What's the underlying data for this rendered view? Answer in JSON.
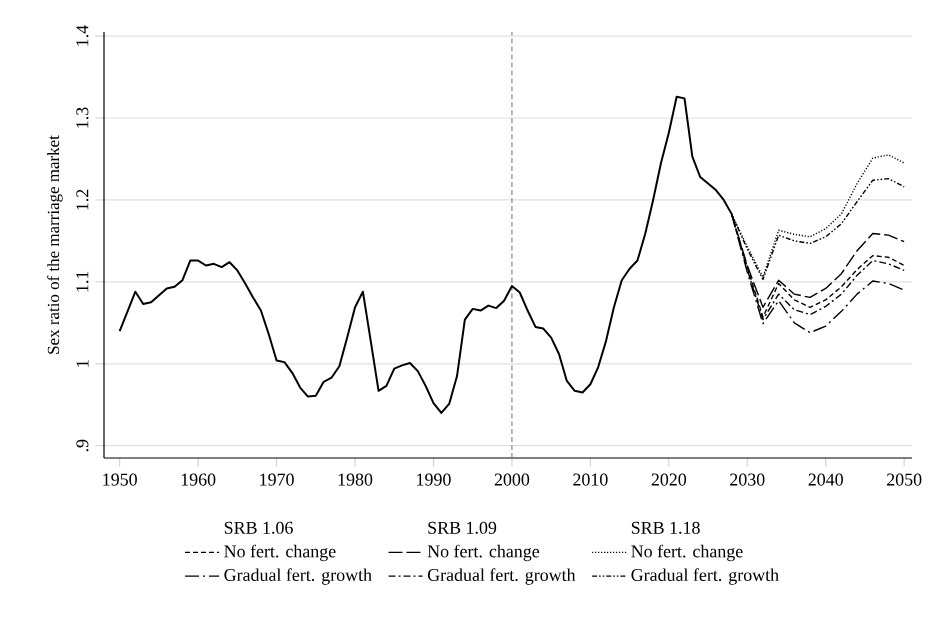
{
  "chart_data": {
    "type": "line",
    "ylabel": "Sex ratio of the marriage market",
    "xlim": [
      1948,
      2051
    ],
    "xticks": [
      1950,
      1960,
      1970,
      1980,
      1990,
      2000,
      2010,
      2020,
      2030,
      2040,
      2050
    ],
    "ylim": [
      0.885,
      1.405
    ],
    "yticks": [
      {
        "value": 0.9,
        "label": ".9"
      },
      1,
      1.1,
      1.2,
      1.3,
      1.4
    ],
    "grid": "y",
    "legend": "bottom",
    "marker": "none",
    "annotations": [
      "SRB 1.06",
      "SRB 1.09",
      "SRB 1.18"
    ],
    "ref_lines": [
      {
        "axis": "x",
        "value": 2000,
        "color": "#888888",
        "line_style": "dashed"
      }
    ],
    "series": [
      {
        "color": "#000000",
        "line_style": "solid",
        "x": [
          1950,
          1952,
          1953,
          1954,
          1956,
          1957,
          1958,
          1959,
          1960,
          1961,
          1962,
          1963,
          1964,
          1965,
          1966,
          1967,
          1968,
          1969,
          1970,
          1971,
          1972,
          1973,
          1974,
          1975,
          1976,
          1977,
          1978,
          1979,
          1980,
          1981,
          1982,
          1983,
          1984,
          1985,
          1986,
          1987,
          1988,
          1989,
          1990,
          1991,
          1992,
          1993,
          1994,
          1995,
          1996,
          1997,
          1998,
          1999,
          2000,
          2001,
          2002,
          2003,
          2004,
          2005,
          2006,
          2007,
          2008,
          2009,
          2010,
          2011,
          2012,
          2013,
          2014,
          2015,
          2016,
          2017,
          2018,
          2019,
          2020,
          2021,
          2022,
          2023,
          2024,
          2025,
          2026,
          2027,
          2028
        ],
        "values": [
          1.04,
          1.088,
          1.073,
          1.075,
          1.092,
          1.094,
          1.102,
          1.126,
          1.126,
          1.12,
          1.122,
          1.118,
          1.124,
          1.114,
          1.098,
          1.081,
          1.065,
          1.036,
          1.004,
          1.002,
          0.989,
          0.971,
          0.96,
          0.961,
          0.978,
          0.983,
          0.997,
          1.032,
          1.069,
          1.088,
          1.028,
          0.967,
          0.973,
          0.994,
          0.998,
          1.001,
          0.991,
          0.973,
          0.952,
          0.94,
          0.951,
          0.985,
          1.054,
          1.067,
          1.065,
          1.071,
          1.068,
          1.077,
          1.095,
          1.087,
          1.065,
          1.045,
          1.043,
          1.032,
          1.012,
          0.979,
          0.967,
          0.965,
          0.975,
          0.996,
          1.028,
          1.069,
          1.102,
          1.116,
          1.126,
          1.159,
          1.2,
          1.245,
          1.282,
          1.326,
          1.324,
          1.253,
          1.228,
          1.22,
          1.212,
          1.2,
          1.183
        ]
      },
      {
        "name": "No fert. change",
        "color": "#000000",
        "line_style": "dashed",
        "x": [
          2028,
          2030,
          2032,
          2034,
          2036,
          2038,
          2040,
          2042,
          2044,
          2046,
          2048,
          2050
        ],
        "values": [
          1.183,
          1.118,
          1.057,
          1.098,
          1.078,
          1.069,
          1.078,
          1.094,
          1.115,
          1.132,
          1.13,
          1.12
        ]
      },
      {
        "name": "Gradual fert. growth",
        "color": "#000000",
        "line_style": "longdashdot",
        "x": [
          2028,
          2030,
          2032,
          2034,
          2036,
          2038,
          2040,
          2042,
          2044,
          2046,
          2048,
          2050
        ],
        "values": [
          1.183,
          1.112,
          1.049,
          1.077,
          1.05,
          1.038,
          1.046,
          1.064,
          1.085,
          1.101,
          1.098,
          1.09
        ]
      },
      {
        "name": "No fert. change",
        "color": "#000000",
        "line_style": "longdashed",
        "x": [
          2028,
          2030,
          2032,
          2034,
          2036,
          2038,
          2040,
          2042,
          2044,
          2046,
          2048,
          2050
        ],
        "values": [
          1.183,
          1.12,
          1.069,
          1.102,
          1.085,
          1.081,
          1.092,
          1.11,
          1.138,
          1.159,
          1.157,
          1.149
        ]
      },
      {
        "name": "Gradual fert. growth",
        "color": "#000000",
        "line_style": "dashdot",
        "x": [
          2028,
          2030,
          2032,
          2034,
          2036,
          2038,
          2040,
          2042,
          2044,
          2046,
          2048,
          2050
        ],
        "values": [
          1.183,
          1.115,
          1.054,
          1.085,
          1.066,
          1.06,
          1.07,
          1.085,
          1.108,
          1.126,
          1.122,
          1.114
        ]
      },
      {
        "name": "No fert. change",
        "color": "#000000",
        "line_style": "dotted",
        "x": [
          2028,
          2030,
          2032,
          2034,
          2036,
          2038,
          2040,
          2042,
          2044,
          2046,
          2048,
          2050
        ],
        "values": [
          1.183,
          1.143,
          1.106,
          1.163,
          1.158,
          1.155,
          1.165,
          1.183,
          1.22,
          1.251,
          1.255,
          1.245
        ]
      },
      {
        "name": "Gradual fert. growth",
        "color": "#000000",
        "line_style": "dashdotdot",
        "x": [
          2028,
          2030,
          2032,
          2034,
          2036,
          2038,
          2040,
          2042,
          2044,
          2046,
          2048,
          2050
        ],
        "values": [
          1.183,
          1.14,
          1.103,
          1.157,
          1.15,
          1.147,
          1.155,
          1.171,
          1.198,
          1.224,
          1.226,
          1.216
        ]
      }
    ]
  }
}
